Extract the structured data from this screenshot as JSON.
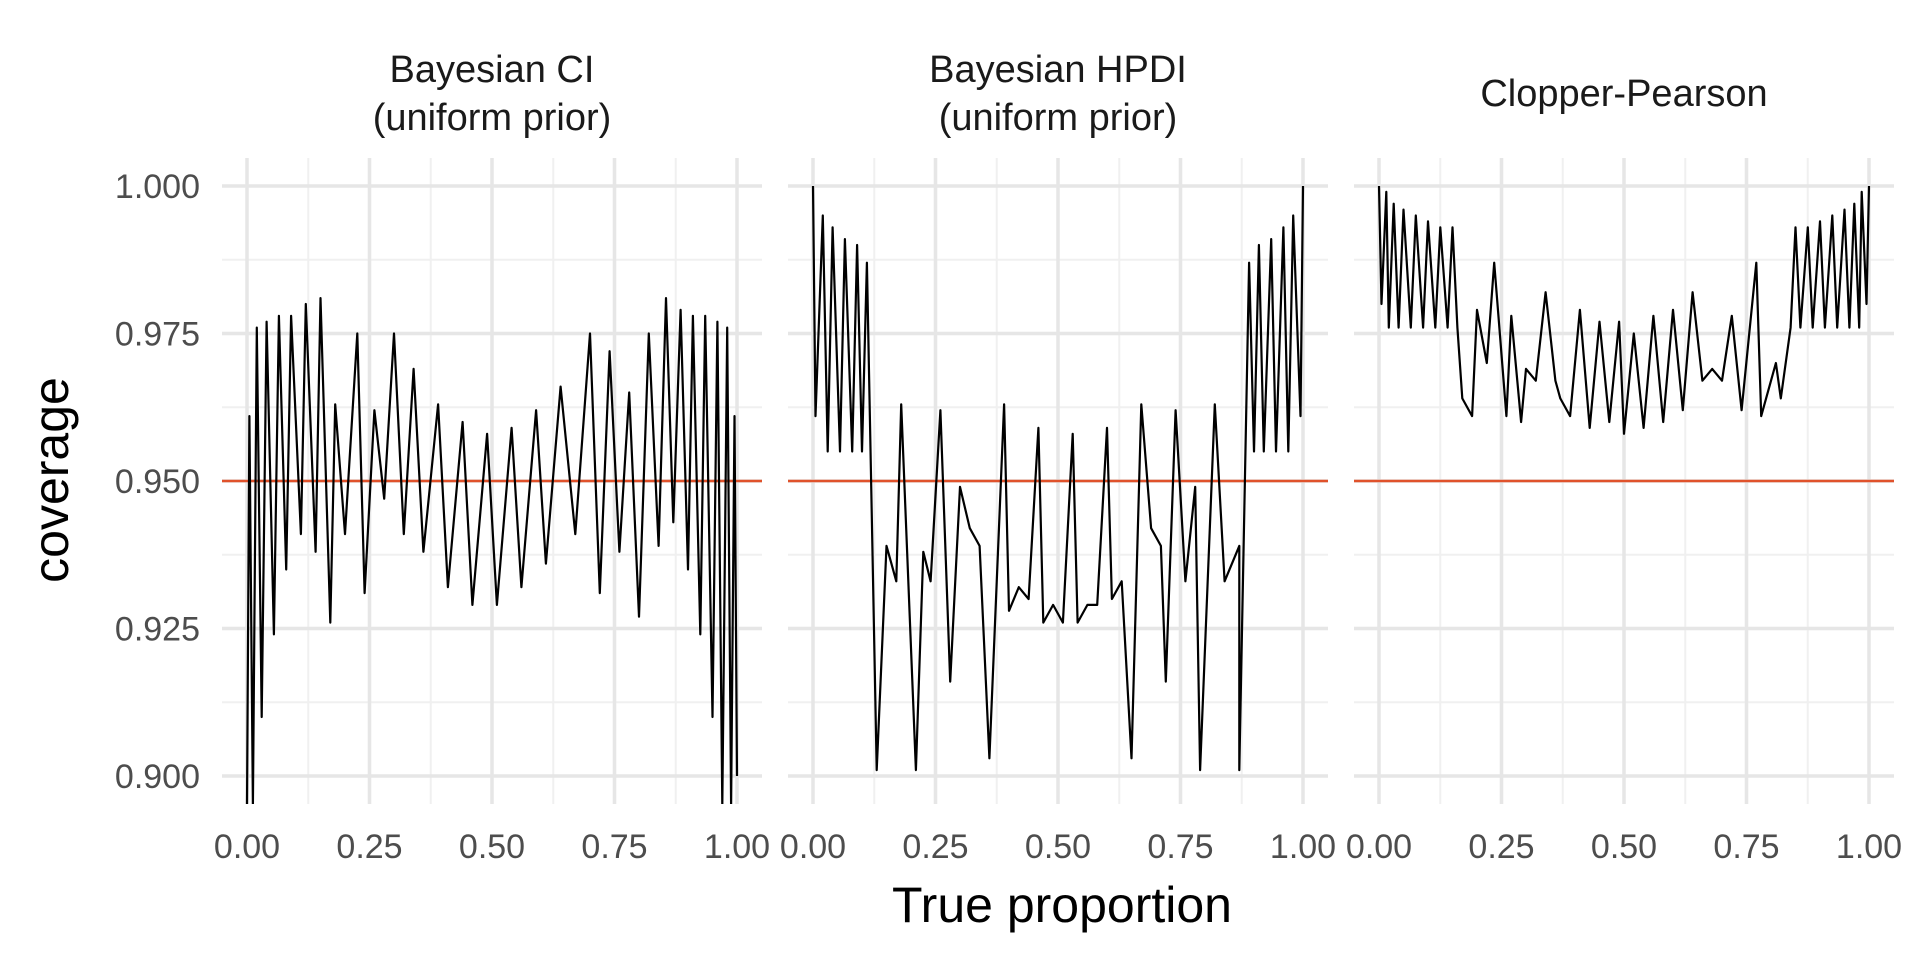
{
  "chart_data": {
    "type": "line",
    "xlabel": "True proportion",
    "ylabel": "coverage",
    "xlim": [
      0,
      1
    ],
    "ylim": [
      0.9,
      1.0
    ],
    "x_ticks": [
      "0.00",
      "0.25",
      "0.50",
      "0.75",
      "1.00"
    ],
    "y_ticks": [
      "0.900",
      "0.925",
      "0.950",
      "0.975",
      "1.000"
    ],
    "reference_line": {
      "y": 0.95,
      "color": "#e0522b"
    },
    "line_color": "#000000",
    "grid": true,
    "facets": [
      {
        "title_lines": [
          "Bayesian CI",
          "(uniform prior)"
        ],
        "peaks": [
          {
            "x": 0.005,
            "y": 0.961
          },
          {
            "x": 0.02,
            "y": 0.976
          },
          {
            "x": 0.04,
            "y": 0.977
          },
          {
            "x": 0.065,
            "y": 0.978
          },
          {
            "x": 0.09,
            "y": 0.978
          },
          {
            "x": 0.12,
            "y": 0.98
          },
          {
            "x": 0.15,
            "y": 0.981
          },
          {
            "x": 0.18,
            "y": 0.963
          },
          {
            "x": 0.225,
            "y": 0.975
          },
          {
            "x": 0.26,
            "y": 0.962
          },
          {
            "x": 0.3,
            "y": 0.975
          },
          {
            "x": 0.34,
            "y": 0.969
          },
          {
            "x": 0.39,
            "y": 0.963
          },
          {
            "x": 0.44,
            "y": 0.96
          },
          {
            "x": 0.49,
            "y": 0.958
          },
          {
            "x": 0.54,
            "y": 0.959
          },
          {
            "x": 0.59,
            "y": 0.962
          },
          {
            "x": 0.64,
            "y": 0.966
          },
          {
            "x": 0.7,
            "y": 0.975
          },
          {
            "x": 0.74,
            "y": 0.972
          },
          {
            "x": 0.78,
            "y": 0.965
          },
          {
            "x": 0.82,
            "y": 0.975
          },
          {
            "x": 0.855,
            "y": 0.981
          },
          {
            "x": 0.885,
            "y": 0.979
          },
          {
            "x": 0.91,
            "y": 0.978
          },
          {
            "x": 0.935,
            "y": 0.978
          },
          {
            "x": 0.96,
            "y": 0.977
          },
          {
            "x": 0.98,
            "y": 0.976
          },
          {
            "x": 0.995,
            "y": 0.961
          }
        ],
        "troughs": [
          {
            "x": 0.0,
            "y": 0.895
          },
          {
            "x": 0.012,
            "y": 0.895
          },
          {
            "x": 0.03,
            "y": 0.91
          },
          {
            "x": 0.055,
            "y": 0.924
          },
          {
            "x": 0.08,
            "y": 0.935
          },
          {
            "x": 0.11,
            "y": 0.941
          },
          {
            "x": 0.14,
            "y": 0.938
          },
          {
            "x": 0.17,
            "y": 0.926
          },
          {
            "x": 0.2,
            "y": 0.941
          },
          {
            "x": 0.24,
            "y": 0.931
          },
          {
            "x": 0.28,
            "y": 0.947
          },
          {
            "x": 0.32,
            "y": 0.941
          },
          {
            "x": 0.36,
            "y": 0.938
          },
          {
            "x": 0.41,
            "y": 0.932
          },
          {
            "x": 0.46,
            "y": 0.929
          },
          {
            "x": 0.51,
            "y": 0.929
          },
          {
            "x": 0.56,
            "y": 0.932
          },
          {
            "x": 0.61,
            "y": 0.936
          },
          {
            "x": 0.67,
            "y": 0.941
          },
          {
            "x": 0.72,
            "y": 0.931
          },
          {
            "x": 0.76,
            "y": 0.938
          },
          {
            "x": 0.8,
            "y": 0.927
          },
          {
            "x": 0.84,
            "y": 0.939
          },
          {
            "x": 0.87,
            "y": 0.943
          },
          {
            "x": 0.9,
            "y": 0.935
          },
          {
            "x": 0.925,
            "y": 0.924
          },
          {
            "x": 0.95,
            "y": 0.91
          },
          {
            "x": 0.97,
            "y": 0.895
          },
          {
            "x": 0.988,
            "y": 0.895
          },
          {
            "x": 1.0,
            "y": 0.9
          }
        ]
      },
      {
        "title_lines": [
          "Bayesian HPDI",
          "(uniform prior)"
        ],
        "peaks": [
          {
            "x": 0.0,
            "y": 1.0
          },
          {
            "x": 0.02,
            "y": 0.995
          },
          {
            "x": 0.04,
            "y": 0.993
          },
          {
            "x": 0.065,
            "y": 0.991
          },
          {
            "x": 0.09,
            "y": 0.99
          },
          {
            "x": 0.11,
            "y": 0.987
          },
          {
            "x": 0.15,
            "y": 0.939
          },
          {
            "x": 0.18,
            "y": 0.963
          },
          {
            "x": 0.225,
            "y": 0.938
          },
          {
            "x": 0.26,
            "y": 0.962
          },
          {
            "x": 0.3,
            "y": 0.949
          },
          {
            "x": 0.34,
            "y": 0.939
          },
          {
            "x": 0.39,
            "y": 0.963
          },
          {
            "x": 0.42,
            "y": 0.932
          },
          {
            "x": 0.46,
            "y": 0.959
          },
          {
            "x": 0.49,
            "y": 0.929
          },
          {
            "x": 0.53,
            "y": 0.958
          },
          {
            "x": 0.56,
            "y": 0.929
          },
          {
            "x": 0.6,
            "y": 0.959
          },
          {
            "x": 0.63,
            "y": 0.933
          },
          {
            "x": 0.67,
            "y": 0.963
          },
          {
            "x": 0.71,
            "y": 0.939
          },
          {
            "x": 0.74,
            "y": 0.962
          },
          {
            "x": 0.78,
            "y": 0.949
          },
          {
            "x": 0.82,
            "y": 0.963
          },
          {
            "x": 0.87,
            "y": 0.939
          },
          {
            "x": 0.89,
            "y": 0.987
          },
          {
            "x": 0.91,
            "y": 0.99
          },
          {
            "x": 0.935,
            "y": 0.991
          },
          {
            "x": 0.96,
            "y": 0.993
          },
          {
            "x": 0.98,
            "y": 0.995
          },
          {
            "x": 1.0,
            "y": 1.0
          }
        ],
        "troughs": [
          {
            "x": 0.005,
            "y": 0.961
          },
          {
            "x": 0.03,
            "y": 0.955
          },
          {
            "x": 0.055,
            "y": 0.955
          },
          {
            "x": 0.08,
            "y": 0.955
          },
          {
            "x": 0.1,
            "y": 0.955
          },
          {
            "x": 0.13,
            "y": 0.901
          },
          {
            "x": 0.17,
            "y": 0.933
          },
          {
            "x": 0.21,
            "y": 0.901
          },
          {
            "x": 0.24,
            "y": 0.933
          },
          {
            "x": 0.28,
            "y": 0.916
          },
          {
            "x": 0.32,
            "y": 0.942
          },
          {
            "x": 0.36,
            "y": 0.903
          },
          {
            "x": 0.4,
            "y": 0.928
          },
          {
            "x": 0.44,
            "y": 0.93
          },
          {
            "x": 0.47,
            "y": 0.926
          },
          {
            "x": 0.51,
            "y": 0.926
          },
          {
            "x": 0.54,
            "y": 0.926
          },
          {
            "x": 0.58,
            "y": 0.929
          },
          {
            "x": 0.61,
            "y": 0.93
          },
          {
            "x": 0.65,
            "y": 0.903
          },
          {
            "x": 0.69,
            "y": 0.942
          },
          {
            "x": 0.72,
            "y": 0.916
          },
          {
            "x": 0.76,
            "y": 0.933
          },
          {
            "x": 0.79,
            "y": 0.901
          },
          {
            "x": 0.84,
            "y": 0.933
          },
          {
            "x": 0.87,
            "y": 0.901
          },
          {
            "x": 0.9,
            "y": 0.955
          },
          {
            "x": 0.92,
            "y": 0.955
          },
          {
            "x": 0.945,
            "y": 0.955
          },
          {
            "x": 0.97,
            "y": 0.955
          },
          {
            "x": 0.995,
            "y": 0.961
          }
        ]
      },
      {
        "title_lines": [
          "Clopper-Pearson"
        ],
        "peaks": [
          {
            "x": 0.0,
            "y": 1.0
          },
          {
            "x": 0.015,
            "y": 0.999
          },
          {
            "x": 0.03,
            "y": 0.997
          },
          {
            "x": 0.05,
            "y": 0.996
          },
          {
            "x": 0.075,
            "y": 0.995
          },
          {
            "x": 0.1,
            "y": 0.994
          },
          {
            "x": 0.125,
            "y": 0.993
          },
          {
            "x": 0.15,
            "y": 0.993
          },
          {
            "x": 0.17,
            "y": 0.964
          },
          {
            "x": 0.2,
            "y": 0.979
          },
          {
            "x": 0.235,
            "y": 0.987
          },
          {
            "x": 0.27,
            "y": 0.978
          },
          {
            "x": 0.3,
            "y": 0.969
          },
          {
            "x": 0.34,
            "y": 0.982
          },
          {
            "x": 0.37,
            "y": 0.964
          },
          {
            "x": 0.41,
            "y": 0.979
          },
          {
            "x": 0.45,
            "y": 0.977
          },
          {
            "x": 0.49,
            "y": 0.977
          },
          {
            "x": 0.52,
            "y": 0.975
          },
          {
            "x": 0.56,
            "y": 0.978
          },
          {
            "x": 0.6,
            "y": 0.979
          },
          {
            "x": 0.64,
            "y": 0.982
          },
          {
            "x": 0.68,
            "y": 0.969
          },
          {
            "x": 0.72,
            "y": 0.978
          },
          {
            "x": 0.77,
            "y": 0.987
          },
          {
            "x": 0.82,
            "y": 0.964
          },
          {
            "x": 0.85,
            "y": 0.993
          },
          {
            "x": 0.875,
            "y": 0.993
          },
          {
            "x": 0.9,
            "y": 0.994
          },
          {
            "x": 0.925,
            "y": 0.995
          },
          {
            "x": 0.95,
            "y": 0.996
          },
          {
            "x": 0.97,
            "y": 0.997
          },
          {
            "x": 0.985,
            "y": 0.999
          },
          {
            "x": 1.0,
            "y": 1.0
          }
        ],
        "troughs": [
          {
            "x": 0.005,
            "y": 0.98
          },
          {
            "x": 0.02,
            "y": 0.976
          },
          {
            "x": 0.04,
            "y": 0.976
          },
          {
            "x": 0.065,
            "y": 0.976
          },
          {
            "x": 0.09,
            "y": 0.976
          },
          {
            "x": 0.115,
            "y": 0.976
          },
          {
            "x": 0.14,
            "y": 0.976
          },
          {
            "x": 0.16,
            "y": 0.976
          },
          {
            "x": 0.19,
            "y": 0.961
          },
          {
            "x": 0.22,
            "y": 0.97
          },
          {
            "x": 0.26,
            "y": 0.961
          },
          {
            "x": 0.29,
            "y": 0.96
          },
          {
            "x": 0.32,
            "y": 0.967
          },
          {
            "x": 0.36,
            "y": 0.967
          },
          {
            "x": 0.39,
            "y": 0.961
          },
          {
            "x": 0.43,
            "y": 0.959
          },
          {
            "x": 0.47,
            "y": 0.96
          },
          {
            "x": 0.5,
            "y": 0.958
          },
          {
            "x": 0.54,
            "y": 0.959
          },
          {
            "x": 0.58,
            "y": 0.96
          },
          {
            "x": 0.62,
            "y": 0.962
          },
          {
            "x": 0.66,
            "y": 0.967
          },
          {
            "x": 0.7,
            "y": 0.967
          },
          {
            "x": 0.74,
            "y": 0.962
          },
          {
            "x": 0.78,
            "y": 0.961
          },
          {
            "x": 0.81,
            "y": 0.97
          },
          {
            "x": 0.84,
            "y": 0.976
          },
          {
            "x": 0.86,
            "y": 0.976
          },
          {
            "x": 0.885,
            "y": 0.976
          },
          {
            "x": 0.91,
            "y": 0.976
          },
          {
            "x": 0.935,
            "y": 0.976
          },
          {
            "x": 0.96,
            "y": 0.976
          },
          {
            "x": 0.98,
            "y": 0.976
          },
          {
            "x": 0.995,
            "y": 0.98
          }
        ]
      }
    ]
  }
}
